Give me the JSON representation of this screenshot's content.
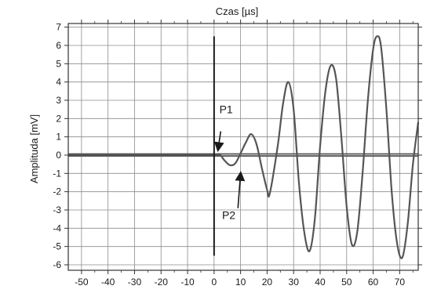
{
  "chart_data": {
    "type": "line",
    "title": "Czas [µs]",
    "xlabel": "Czas [µs]",
    "ylabel": "Amplituda [mV]",
    "xlim": [
      -55,
      77
    ],
    "ylim": [
      -6.3,
      7.2
    ],
    "xticks": [
      -50,
      -40,
      -30,
      -20,
      -10,
      0,
      10,
      20,
      30,
      40,
      50,
      60,
      70
    ],
    "yticks": [
      -6,
      -5,
      -4,
      -3,
      -2,
      -1,
      0,
      1,
      2,
      3,
      4,
      5,
      6,
      7
    ],
    "xtick_labels": [
      "-50",
      "-40",
      "-30",
      "-20",
      "-10",
      "0",
      "10",
      "20",
      "30",
      "40",
      "50",
      "60",
      "70"
    ],
    "ytick_labels": [
      "-6",
      "-5",
      "-4",
      "-3",
      "-2",
      "-1",
      "0",
      "1",
      "2",
      "3",
      "4",
      "5",
      "6",
      "7"
    ],
    "grid": true,
    "colors": {
      "line": "#555555",
      "grid": "#8c8c8c",
      "trigger": "#1a1a1a",
      "frame": "#333333"
    },
    "series": [
      {
        "x": [
          -55,
          -20,
          0,
          2,
          4,
          6,
          8,
          10,
          12,
          14,
          16,
          18,
          20,
          21,
          24,
          26,
          28,
          30,
          32,
          34,
          36,
          38,
          40,
          42,
          44,
          46,
          48,
          50,
          52,
          54,
          56,
          58,
          60,
          61.5,
          63,
          65,
          67,
          69,
          71,
          73,
          75,
          77
        ],
        "y": [
          0.0,
          0.0,
          0.0,
          0.05,
          -0.3,
          -0.55,
          -0.45,
          0.1,
          0.7,
          1.15,
          0.6,
          -0.7,
          -1.9,
          -2.1,
          0.5,
          2.8,
          4.0,
          2.5,
          -1.5,
          -4.2,
          -5.25,
          -3.5,
          0.5,
          3.5,
          4.9,
          4.2,
          1.0,
          -2.8,
          -4.9,
          -4.2,
          -1.0,
          3.0,
          5.8,
          6.5,
          5.9,
          2.5,
          -2.0,
          -4.8,
          -5.6,
          -3.8,
          -0.5,
          1.8
        ]
      }
    ],
    "trigger_line": {
      "x": 0,
      "y_range": [
        -5.5,
        6.5
      ]
    },
    "annotations": [
      {
        "label": "P1",
        "text_at": [
          2,
          2.3
        ],
        "arrow_from": [
          2.5,
          1.3
        ],
        "arrow_to": [
          1.5,
          0.3
        ]
      },
      {
        "label": "P2",
        "text_at": [
          3,
          -3.5
        ],
        "arrow_from": [
          9,
          -2.9
        ],
        "arrow_to": [
          10,
          -1.0
        ]
      }
    ]
  }
}
